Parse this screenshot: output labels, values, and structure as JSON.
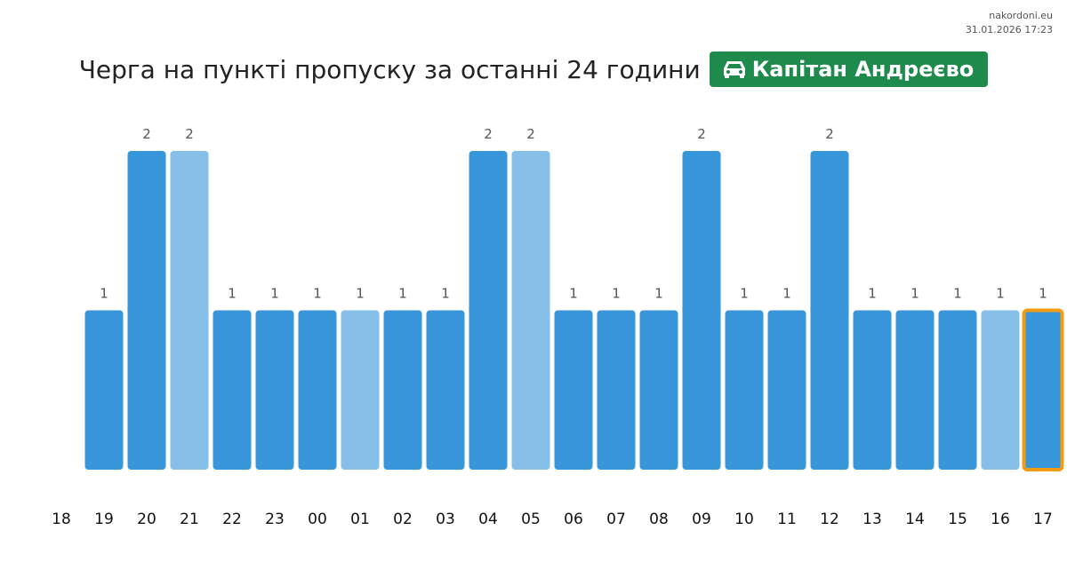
{
  "source": {
    "site": "nakordoni.eu",
    "timestamp": "31.01.2026 17:23"
  },
  "header": {
    "title": "Черга на пункті пропуску за останні 24 години",
    "checkpoint": "Капітан Андреєво",
    "checkpoint_icon": "car-icon",
    "badge_color": "#1e8a4c"
  },
  "chart_data": {
    "type": "bar",
    "categories": [
      "18",
      "19",
      "20",
      "21",
      "22",
      "23",
      "00",
      "01",
      "02",
      "03",
      "04",
      "05",
      "06",
      "07",
      "08",
      "09",
      "10",
      "11",
      "12",
      "13",
      "14",
      "15",
      "16",
      "17"
    ],
    "values": [
      0,
      1,
      2,
      2,
      1,
      1,
      1,
      1,
      1,
      1,
      2,
      2,
      1,
      1,
      1,
      2,
      1,
      1,
      2,
      1,
      1,
      1,
      1,
      1
    ],
    "highlighted": [
      false,
      false,
      false,
      true,
      false,
      false,
      false,
      true,
      false,
      false,
      false,
      true,
      false,
      false,
      false,
      false,
      false,
      false,
      false,
      false,
      false,
      false,
      true,
      false
    ],
    "current_index": 23,
    "colors": {
      "bar": "#3897db",
      "bar_light": "#86c0e8",
      "current_outline": "#f39c12",
      "label": "#555555",
      "tick": "#111111"
    },
    "title": "",
    "xlabel": "",
    "ylabel": "",
    "ylim": [
      0,
      2
    ],
    "grid": false,
    "legend": "none"
  }
}
